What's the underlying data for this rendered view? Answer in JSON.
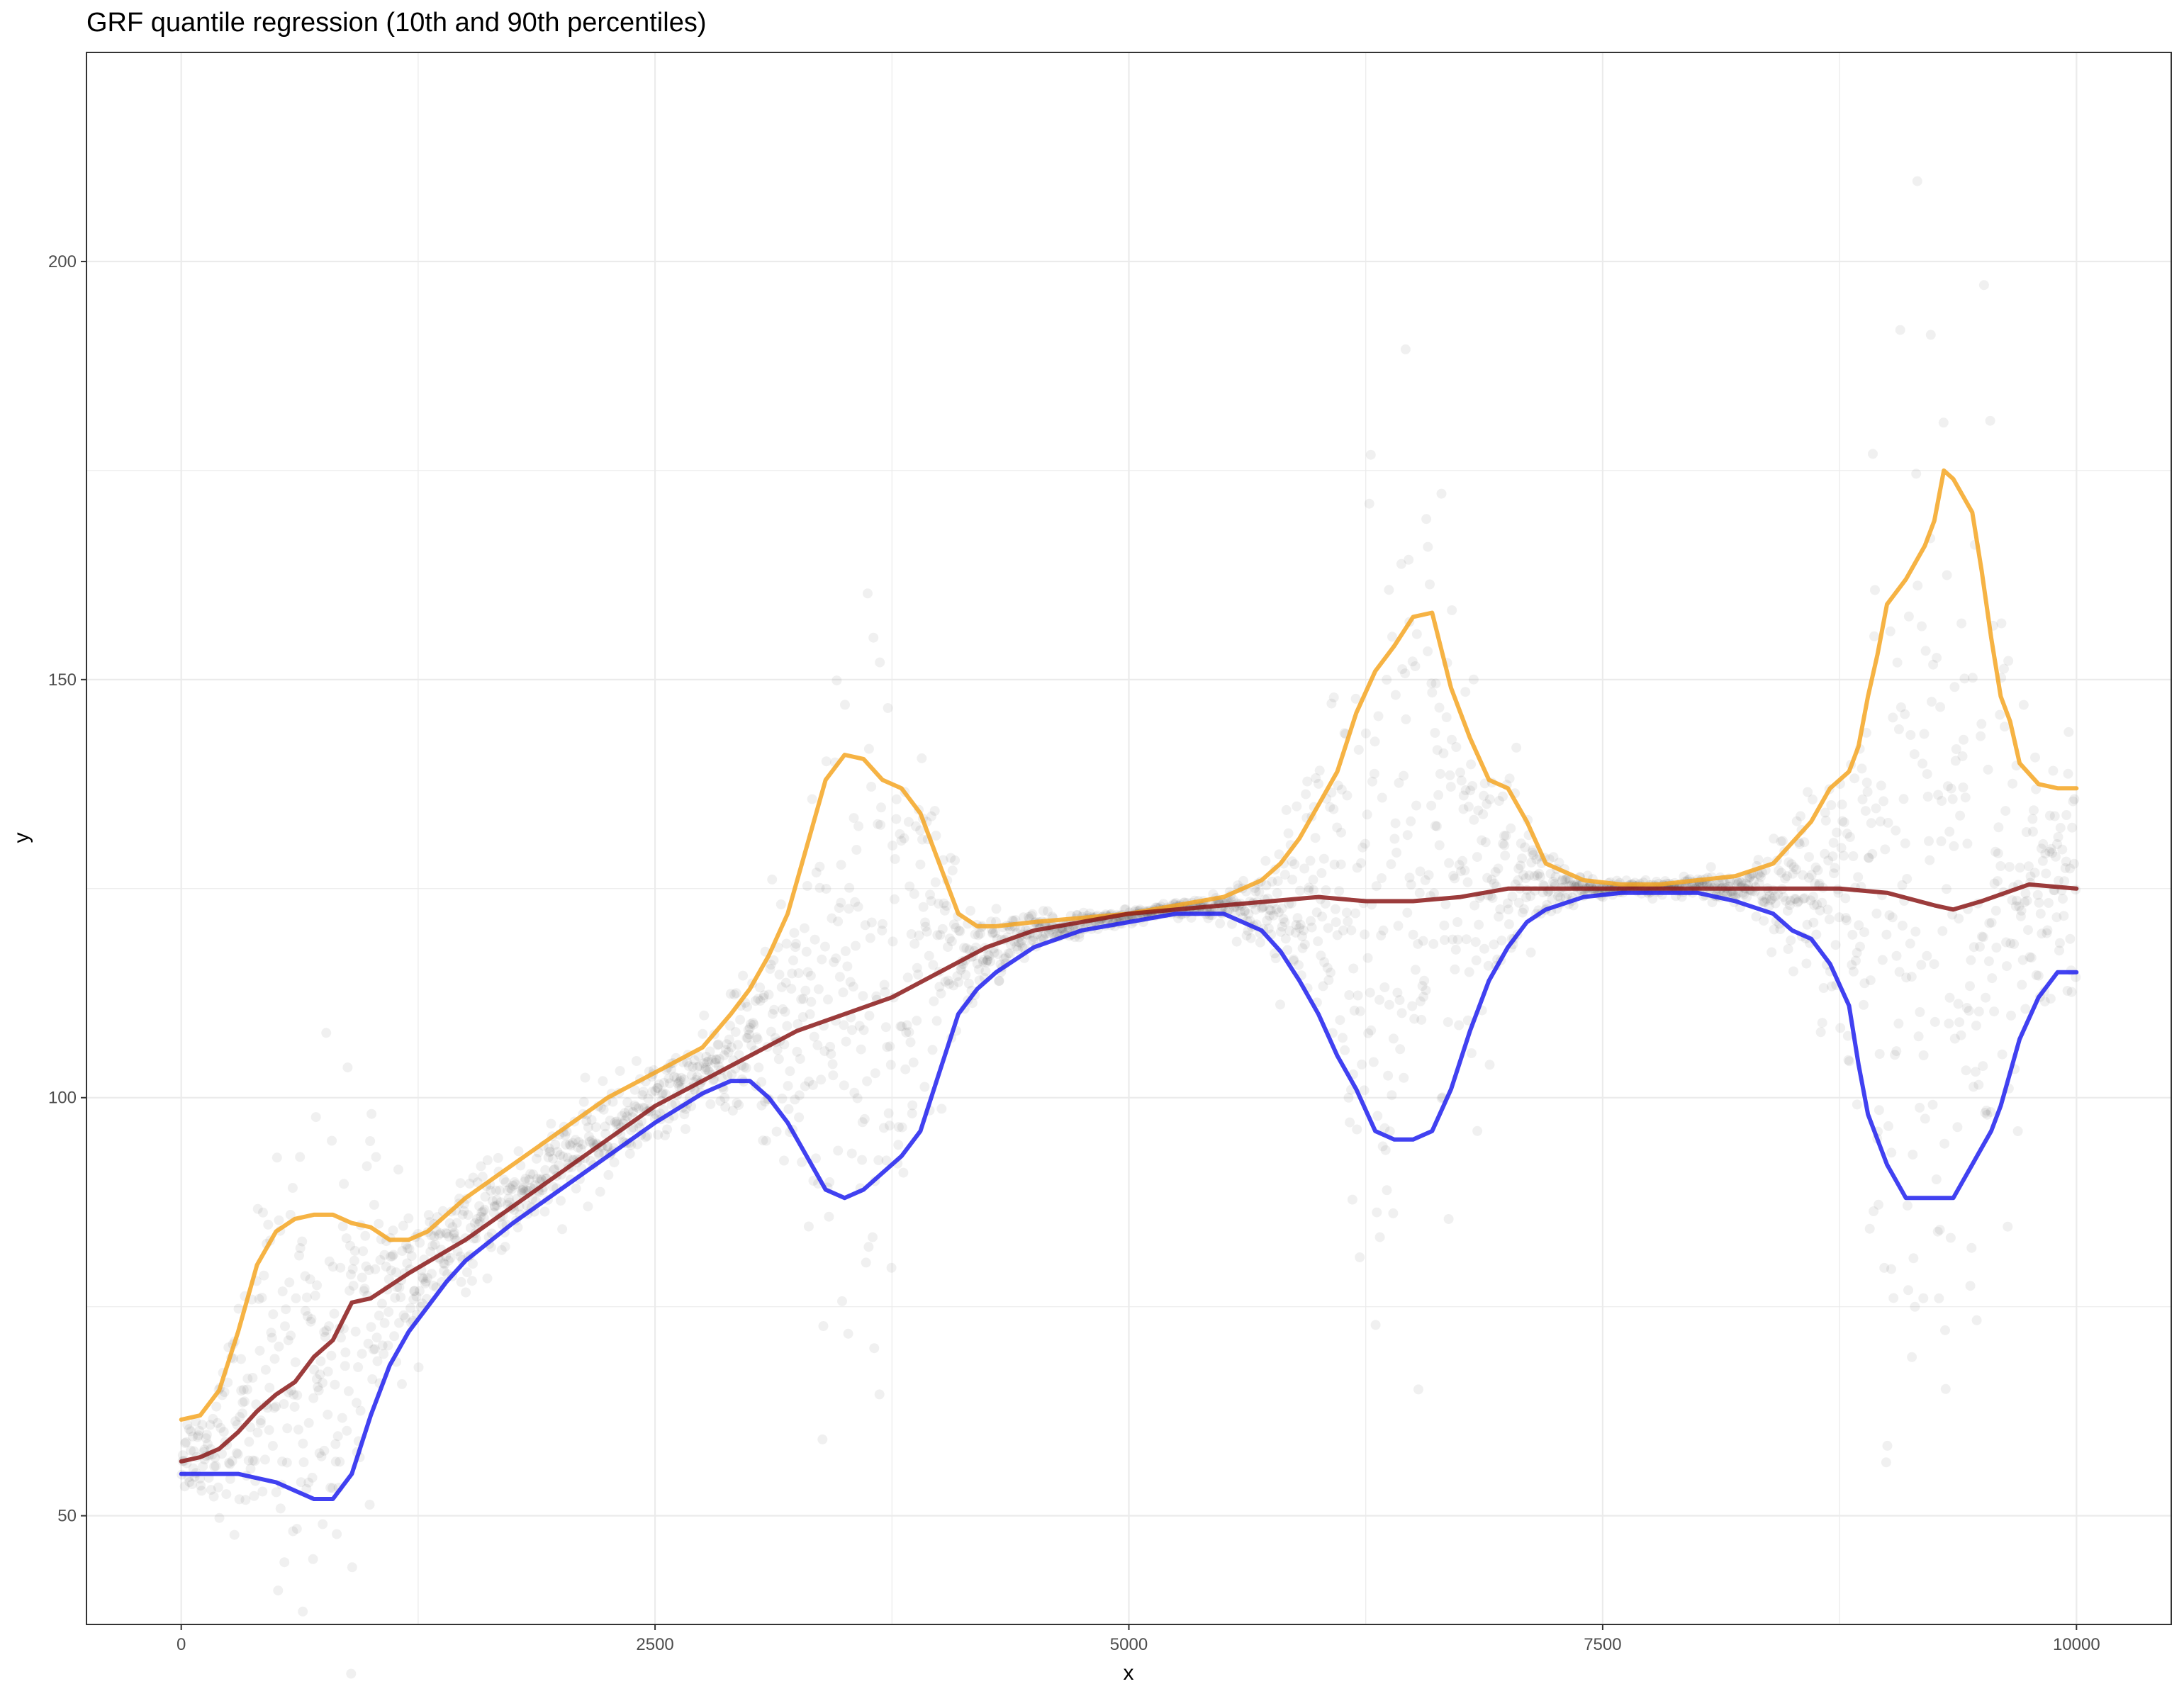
{
  "chart_data": {
    "type": "scatter",
    "title": "GRF quantile regression (10th and 90th percentiles)",
    "xlabel": "x",
    "ylabel": "y",
    "xlim": [
      -500,
      10500
    ],
    "ylim": [
      37,
      225
    ],
    "x_ticks": [
      0,
      2500,
      5000,
      7500,
      10000
    ],
    "x_tick_labels": [
      "0",
      "2500",
      "5000",
      "7500",
      "10000"
    ],
    "y_ticks": [
      50,
      100,
      150,
      200
    ],
    "y_tick_labels": [
      "50",
      "100",
      "150",
      "200"
    ],
    "grid": true,
    "legend": "none",
    "colors": {
      "points": "#000000",
      "upper_quantile": "#f5a623",
      "median": "#8b1a1a",
      "lower_quantile": "#2020ee",
      "grid": "#ebebeb",
      "panel_border": "#333333"
    },
    "series": [
      {
        "role": "upper_quantile",
        "x": [
          0,
          100,
          200,
          300,
          400,
          500,
          600,
          700,
          800,
          900,
          1000,
          1100,
          1200,
          1300,
          1400,
          1500,
          1750,
          2000,
          2250,
          2500,
          2750,
          2900,
          3000,
          3100,
          3200,
          3300,
          3400,
          3500,
          3600,
          3700,
          3800,
          3900,
          4000,
          4100,
          4200,
          4300,
          4500,
          4750,
          5000,
          5250,
          5500,
          5700,
          5800,
          5900,
          6000,
          6100,
          6200,
          6300,
          6400,
          6500,
          6600,
          6700,
          6800,
          6900,
          7000,
          7100,
          7200,
          7400,
          7600,
          7800,
          8000,
          8200,
          8400,
          8600,
          8700,
          8800,
          8850,
          8900,
          8950,
          9000,
          9100,
          9200,
          9250,
          9300,
          9350,
          9400,
          9450,
          9500,
          9550,
          9600,
          9650,
          9700,
          9800,
          9900,
          10000
        ],
        "values": [
          61.5,
          62,
          65,
          72,
          80,
          84,
          85.5,
          86,
          86,
          85,
          84.5,
          83,
          83,
          84,
          86,
          88,
          92,
          96,
          100,
          103,
          106,
          110,
          113,
          117,
          122,
          130,
          138,
          141,
          140.5,
          138,
          137,
          134,
          128,
          122,
          120.5,
          120.5,
          121,
          121.5,
          122,
          123,
          124,
          126,
          128,
          131,
          135,
          139,
          146,
          151,
          154,
          157.5,
          158,
          149,
          143,
          138,
          137,
          133,
          128,
          126,
          125.5,
          125.5,
          126,
          126.5,
          128,
          133,
          137,
          139,
          142,
          148,
          153,
          159,
          162,
          166,
          169,
          175,
          174,
          172,
          170,
          163,
          155,
          148,
          145,
          140,
          137.5,
          137,
          137
        ]
      },
      {
        "role": "median",
        "x": [
          0,
          100,
          200,
          300,
          400,
          500,
          600,
          700,
          800,
          900,
          1000,
          1100,
          1200,
          1500,
          1750,
          2000,
          2250,
          2500,
          2750,
          3000,
          3250,
          3500,
          3750,
          4000,
          4250,
          4500,
          4750,
          5000,
          5250,
          5500,
          5750,
          6000,
          6250,
          6500,
          6750,
          7000,
          7250,
          7500,
          7750,
          8000,
          8250,
          8500,
          8750,
          9000,
          9250,
          9350,
          9500,
          9750,
          10000
        ],
        "values": [
          56.5,
          57,
          58,
          60,
          62.5,
          64.5,
          66,
          69,
          71,
          75.5,
          76,
          77.5,
          79,
          83,
          87,
          91,
          95,
          99,
          102,
          105,
          108,
          110,
          112,
          115,
          118,
          120,
          121,
          122,
          122.5,
          123,
          123.5,
          124,
          123.5,
          123.5,
          124,
          125,
          125,
          125,
          125,
          125,
          125,
          125,
          125,
          124.5,
          123,
          122.5,
          123.5,
          125.5,
          125
        ]
      },
      {
        "role": "lower_quantile",
        "x": [
          0,
          100,
          200,
          300,
          400,
          500,
          600,
          700,
          800,
          900,
          1000,
          1100,
          1200,
          1300,
          1400,
          1500,
          1750,
          2000,
          2250,
          2500,
          2750,
          2900,
          3000,
          3100,
          3200,
          3300,
          3400,
          3500,
          3600,
          3700,
          3800,
          3900,
          4000,
          4100,
          4200,
          4300,
          4500,
          4750,
          5000,
          5250,
          5500,
          5600,
          5700,
          5800,
          5900,
          6000,
          6100,
          6200,
          6300,
          6400,
          6500,
          6600,
          6700,
          6800,
          6900,
          7000,
          7100,
          7200,
          7400,
          7600,
          7800,
          8000,
          8200,
          8400,
          8500,
          8600,
          8700,
          8800,
          8850,
          8900,
          8950,
          9000,
          9100,
          9200,
          9300,
          9350,
          9400,
          9450,
          9500,
          9550,
          9600,
          9700,
          9800,
          9900,
          10000
        ],
        "values": [
          55,
          55,
          55,
          55,
          54.5,
          54,
          53,
          52,
          52,
          55,
          62,
          68,
          72,
          75,
          78,
          80.5,
          85,
          89,
          93,
          97,
          100.5,
          102,
          102,
          100,
          97,
          93,
          89,
          88,
          89,
          91,
          93,
          96,
          103,
          110,
          113,
          115,
          118,
          120,
          121,
          122,
          122,
          121,
          120,
          117.5,
          114,
          110,
          105,
          101,
          96,
          95,
          95,
          96,
          101,
          108,
          114,
          118,
          121,
          122.5,
          124,
          124.5,
          124.5,
          124.5,
          123.5,
          122,
          120,
          119,
          116,
          111,
          104,
          98,
          95,
          92,
          88,
          88,
          88,
          88,
          90,
          92,
          94,
          96,
          99,
          107,
          112,
          115,
          115
        ]
      }
    ]
  }
}
